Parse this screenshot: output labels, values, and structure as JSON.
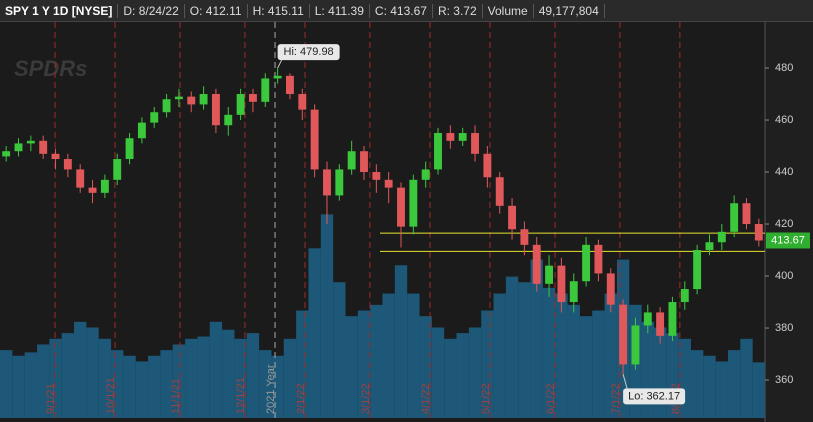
{
  "header": {
    "symbol": "SPY 1 Y 1D [NYSE]",
    "date": "D: 8/24/22",
    "open": "O: 412.11",
    "high": "H: 415.11",
    "low": "L: 411.39",
    "close": "C: 413.67",
    "range": "R: 3.72",
    "volume_label": "Volume",
    "volume": "49,177,804"
  },
  "chart_data": {
    "type": "candlestick",
    "watermark": "SPDRs",
    "categories": [
      null,
      null,
      null,
      null,
      null,
      null,
      null,
      null,
      null,
      null,
      null,
      null,
      null,
      null,
      null,
      null,
      null,
      null,
      null,
      null,
      null,
      null,
      null,
      null,
      null,
      null,
      null,
      null,
      null,
      null,
      null,
      null,
      null,
      null,
      null,
      null,
      null,
      null,
      null,
      null,
      null,
      null,
      null,
      null,
      null,
      null,
      null,
      null,
      null,
      null,
      null,
      null,
      null,
      null,
      null,
      null,
      null,
      null,
      null,
      null,
      null,
      null
    ],
    "open": [
      446,
      448,
      451,
      452,
      447,
      445,
      441,
      434,
      432,
      437,
      445,
      453,
      459,
      463,
      468,
      469,
      466,
      470,
      458,
      462,
      470,
      467,
      476,
      477,
      470,
      464,
      441,
      431,
      441,
      448,
      440,
      437,
      434,
      419,
      437,
      441,
      455,
      452,
      455,
      447,
      438,
      427,
      418,
      412,
      397,
      404,
      390,
      398,
      412,
      401,
      389,
      366,
      381,
      386,
      377,
      390,
      395,
      410,
      413,
      417,
      428,
      420
    ],
    "high": [
      450,
      453,
      454,
      454,
      449,
      447,
      443,
      437,
      439,
      447,
      455,
      461,
      465,
      470,
      472,
      471,
      473,
      472,
      465,
      472,
      472,
      478,
      479.98,
      478,
      472,
      466,
      444,
      443,
      452,
      450,
      443,
      440,
      436,
      439,
      444,
      457,
      458,
      457,
      458,
      450,
      440,
      430,
      421,
      415,
      408,
      407,
      401,
      415,
      414,
      403,
      391,
      384,
      389,
      388,
      392,
      398,
      412,
      416,
      420,
      431,
      430,
      422
    ],
    "low": [
      444,
      446,
      448,
      445,
      441,
      438,
      432,
      428,
      430,
      435,
      443,
      451,
      457,
      461,
      465,
      463,
      464,
      455,
      454,
      460,
      463,
      465,
      474,
      468,
      460,
      438,
      420,
      429,
      439,
      437,
      432,
      428,
      411,
      416,
      434,
      439,
      449,
      450,
      444,
      434,
      424,
      414,
      408,
      394,
      392,
      386,
      386,
      396,
      398,
      386,
      362.17,
      364,
      378,
      374,
      375,
      387,
      393,
      408,
      410,
      415,
      418,
      411.39
    ],
    "close": [
      448,
      451,
      452,
      447,
      445,
      441,
      434,
      432,
      437,
      445,
      453,
      459,
      463,
      468,
      469,
      466,
      470,
      458,
      462,
      470,
      467,
      476,
      477,
      470,
      464,
      441,
      431,
      441,
      448,
      440,
      437,
      434,
      419,
      437,
      441,
      455,
      452,
      455,
      447,
      438,
      427,
      418,
      412,
      397,
      404,
      390,
      398,
      412,
      401,
      389,
      366,
      381,
      386,
      377,
      390,
      395,
      410,
      413,
      417,
      428,
      420,
      413.67
    ],
    "volume": [
      60,
      55,
      58,
      65,
      70,
      75,
      85,
      80,
      70,
      60,
      55,
      50,
      55,
      60,
      65,
      70,
      72,
      85,
      78,
      70,
      75,
      60,
      55,
      70,
      95,
      150,
      180,
      120,
      90,
      95,
      100,
      110,
      135,
      110,
      90,
      80,
      70,
      75,
      80,
      95,
      110,
      125,
      120,
      140,
      115,
      110,
      100,
      90,
      95,
      110,
      140,
      100,
      85,
      80,
      75,
      70,
      60,
      55,
      50,
      60,
      70,
      49.18
    ],
    "up_color": "#3cc83c",
    "down_color": "#e0585a",
    "volume_color": "#1d5878",
    "ylim": [
      345.4,
      497.7
    ],
    "yticks": [
      360,
      380,
      400,
      420,
      440,
      460,
      480
    ],
    "volume_ylim": [
      0,
      350
    ],
    "xticks": [
      {
        "value": 3.96,
        "label": "9/1/21"
      },
      {
        "value": 8.82,
        "label": "10/1/21"
      },
      {
        "value": 14.09,
        "label": "11/1/21"
      },
      {
        "value": 19.35,
        "label": "12/1/21"
      },
      {
        "value": 21.79,
        "label": "2021 Year"
      },
      {
        "value": 24.22,
        "label": "2/1/22"
      },
      {
        "value": 29.48,
        "label": "3/1/22"
      },
      {
        "value": 34.35,
        "label": "4/1/22"
      },
      {
        "value": 39.21,
        "label": "5/1/22"
      },
      {
        "value": 44.48,
        "label": "6/1/22"
      },
      {
        "value": 49.74,
        "label": "7/1/22"
      },
      {
        "value": 54.6,
        "label": "8/1/22"
      }
    ],
    "hlines": [
      416.5,
      409.5
    ],
    "hline_color": "#e6e62a",
    "annotations": {
      "high": "Hi: 479.98",
      "low": "Lo: 362.17"
    }
  }
}
